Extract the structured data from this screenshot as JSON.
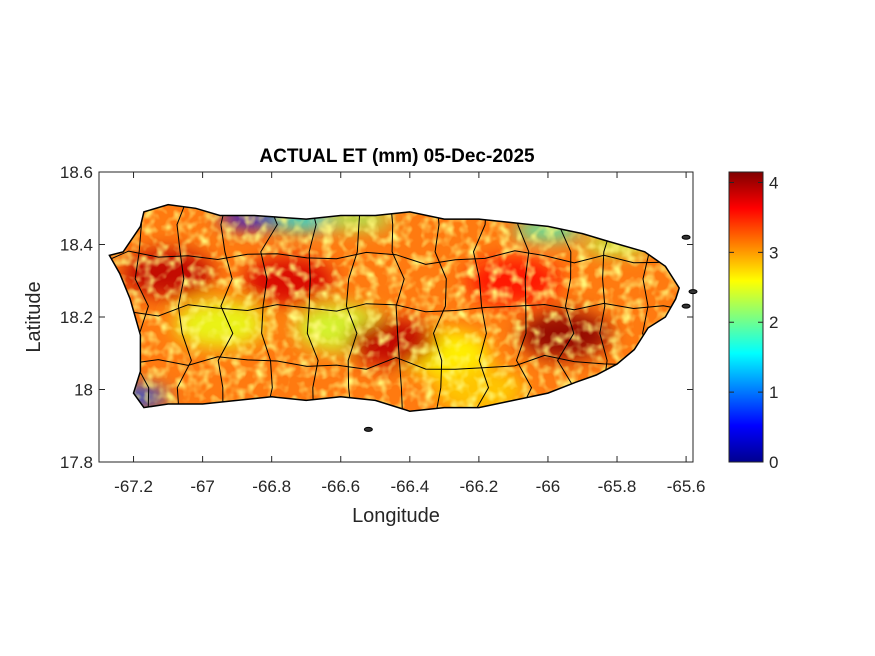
{
  "chart_data": {
    "type": "heatmap",
    "title": "ACTUAL ET (mm) 05-Dec-2025",
    "xlabel": "Longitude",
    "ylabel": "Latitude",
    "xlim": [
      -67.3,
      -65.58
    ],
    "ylim": [
      17.8,
      18.6
    ],
    "x_ticks": [
      -67.2,
      -67,
      -66.8,
      -66.6,
      -66.4,
      -66.2,
      -66,
      -65.8,
      -65.6
    ],
    "x_tick_labels": [
      "-67.2",
      "-67",
      "-66.8",
      "-66.6",
      "-66.4",
      "-66.2",
      "-66",
      "-65.8",
      "-65.6"
    ],
    "y_ticks": [
      17.8,
      18,
      18.2,
      18.4,
      18.6
    ],
    "y_tick_labels": [
      "17.8",
      "18",
      "18.2",
      "18.4",
      "18.6"
    ],
    "colorbar": {
      "colormap": "jet",
      "range": [
        0,
        4.15
      ],
      "ticks": [
        0,
        1,
        2,
        3,
        4
      ],
      "tick_labels": [
        "0",
        "1",
        "2",
        "3",
        "4"
      ]
    },
    "island_outline": [
      [
        -67.27,
        18.37
      ],
      [
        -67.23,
        18.38
      ],
      [
        -67.18,
        18.45
      ],
      [
        -67.17,
        18.49
      ],
      [
        -67.1,
        18.51
      ],
      [
        -67.02,
        18.5
      ],
      [
        -66.95,
        18.48
      ],
      [
        -66.85,
        18.48
      ],
      [
        -66.7,
        18.47
      ],
      [
        -66.6,
        18.48
      ],
      [
        -66.5,
        18.48
      ],
      [
        -66.4,
        18.49
      ],
      [
        -66.3,
        18.47
      ],
      [
        -66.2,
        18.47
      ],
      [
        -66.1,
        18.46
      ],
      [
        -66.0,
        18.45
      ],
      [
        -65.9,
        18.43
      ],
      [
        -65.83,
        18.41
      ],
      [
        -65.72,
        18.38
      ],
      [
        -65.66,
        18.34
      ],
      [
        -65.62,
        18.28
      ],
      [
        -65.63,
        18.25
      ],
      [
        -65.66,
        18.2
      ],
      [
        -65.71,
        18.17
      ],
      [
        -65.75,
        18.11
      ],
      [
        -65.8,
        18.07
      ],
      [
        -65.86,
        18.04
      ],
      [
        -65.92,
        18.02
      ],
      [
        -66.0,
        17.99
      ],
      [
        -66.1,
        17.97
      ],
      [
        -66.2,
        17.95
      ],
      [
        -66.3,
        17.95
      ],
      [
        -66.4,
        17.94
      ],
      [
        -66.5,
        17.97
      ],
      [
        -66.6,
        17.98
      ],
      [
        -66.7,
        17.97
      ],
      [
        -66.8,
        17.98
      ],
      [
        -66.9,
        17.97
      ],
      [
        -67.0,
        17.96
      ],
      [
        -67.1,
        17.96
      ],
      [
        -67.17,
        17.95
      ],
      [
        -67.2,
        17.99
      ],
      [
        -67.18,
        18.05
      ],
      [
        -67.18,
        18.15
      ],
      [
        -67.21,
        18.25
      ],
      [
        -67.24,
        18.32
      ]
    ],
    "value_regions": [
      {
        "lon": -66.85,
        "lat": 18.475,
        "value": 0.5
      },
      {
        "lon": -66.7,
        "lat": 18.47,
        "value": 1.5
      },
      {
        "lon": -66.55,
        "lat": 18.47,
        "value": 2.2
      },
      {
        "lon": -67.2,
        "lat": 17.98,
        "value": 0.8
      },
      {
        "lon": -66.0,
        "lat": 18.44,
        "value": 1.8
      },
      {
        "lon": -65.8,
        "lat": 18.4,
        "value": 2.3
      },
      {
        "lon": -66.95,
        "lat": 18.18,
        "value": 2.5
      },
      {
        "lon": -66.6,
        "lat": 18.17,
        "value": 2.4
      },
      {
        "lon": -66.3,
        "lat": 18.1,
        "value": 2.6
      },
      {
        "lon": -65.95,
        "lat": 18.15,
        "value": 4.1
      },
      {
        "lon": -66.45,
        "lat": 18.13,
        "value": 3.9
      },
      {
        "lon": -66.75,
        "lat": 18.3,
        "value": 3.8
      },
      {
        "lon": -67.1,
        "lat": 18.32,
        "value": 3.9
      },
      {
        "lon": -66.1,
        "lat": 18.3,
        "value": 3.6
      },
      {
        "lon": -66.2,
        "lat": 18.0,
        "value": 2.8
      }
    ]
  }
}
